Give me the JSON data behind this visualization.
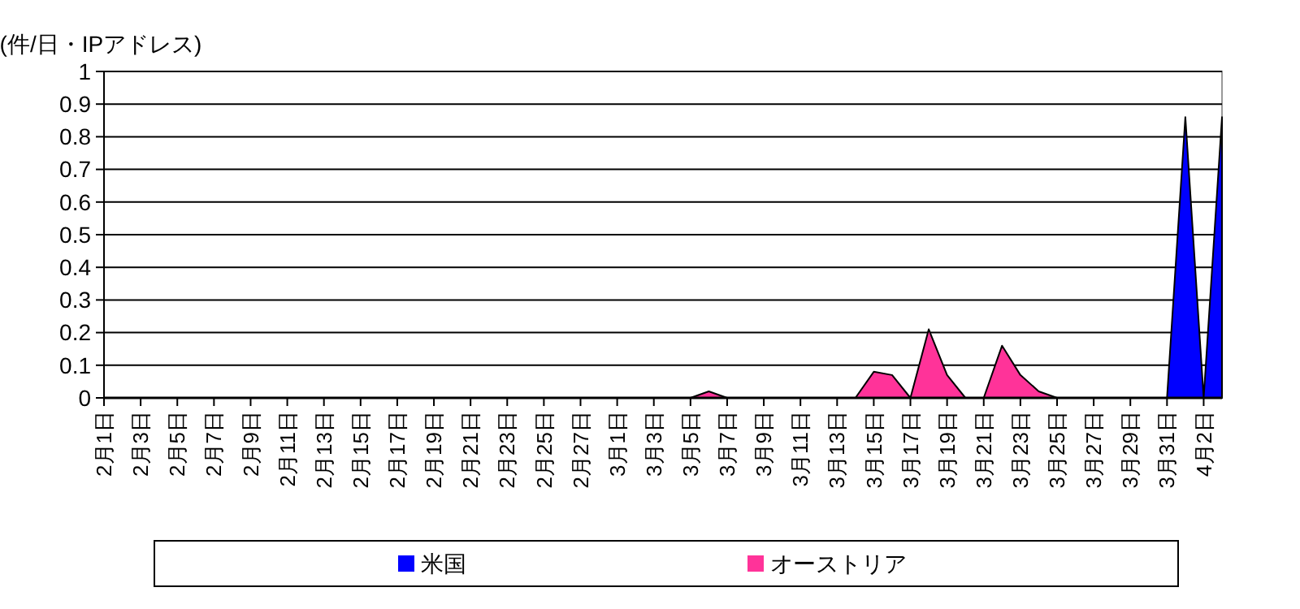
{
  "chart_data": {
    "type": "area",
    "ylabel": "(件/日・IPアドレス)",
    "categories": [
      "2月1日",
      null,
      "2月3日",
      null,
      "2月5日",
      null,
      "2月7日",
      null,
      "2月9日",
      null,
      "2月11日",
      null,
      "2月13日",
      null,
      "2月15日",
      null,
      "2月17日",
      null,
      "2月19日",
      null,
      "2月21日",
      null,
      "2月23日",
      null,
      "2月25日",
      null,
      "2月27日",
      null,
      "3月1日",
      null,
      "3月3日",
      null,
      "3月5日",
      null,
      "3月7日",
      null,
      "3月9日",
      null,
      "3月11日",
      null,
      "3月13日",
      null,
      "3月15日",
      null,
      "3月17日",
      null,
      "3月19日",
      null,
      "3月21日",
      null,
      "3月23日",
      null,
      "3月25日",
      null,
      "3月27日",
      null,
      "3月29日",
      null,
      "3月31日",
      null,
      "4月2日",
      null
    ],
    "series": [
      {
        "name": "米国",
        "color": "#0000ff",
        "values": [
          0,
          0,
          0,
          0,
          0,
          0,
          0,
          0,
          0,
          0,
          0,
          0,
          0,
          0,
          0,
          0,
          0,
          0,
          0,
          0,
          0,
          0,
          0,
          0,
          0,
          0,
          0,
          0,
          0,
          0,
          0,
          0,
          0,
          0,
          0,
          0,
          0,
          0,
          0,
          0,
          0,
          0,
          0,
          0,
          0,
          0,
          0,
          0,
          0,
          0,
          0,
          0,
          0,
          0,
          0,
          0,
          0,
          0,
          0,
          0.86,
          0,
          0.86
        ]
      },
      {
        "name": "オーストリア",
        "color": "#ff3399",
        "values": [
          0,
          0,
          0,
          0,
          0,
          0,
          0,
          0,
          0,
          0,
          0,
          0,
          0,
          0,
          0,
          0,
          0,
          0,
          0,
          0,
          0,
          0,
          0,
          0,
          0,
          0,
          0,
          0,
          0,
          0,
          0,
          0,
          0,
          0.02,
          0,
          0,
          0,
          0,
          0,
          0,
          0,
          0,
          0.08,
          0.07,
          0,
          0.21,
          0.07,
          0,
          0,
          0.16,
          0.07,
          0.02,
          0,
          0,
          0,
          0,
          0,
          0,
          0,
          0,
          0,
          0
        ]
      }
    ],
    "ylim": [
      0,
      1
    ],
    "yticks": [
      0,
      0.1,
      0.2,
      0.3,
      0.4,
      0.5,
      0.6,
      0.7,
      0.8,
      0.9,
      1
    ],
    "grid": "y",
    "legend": "bottom"
  }
}
